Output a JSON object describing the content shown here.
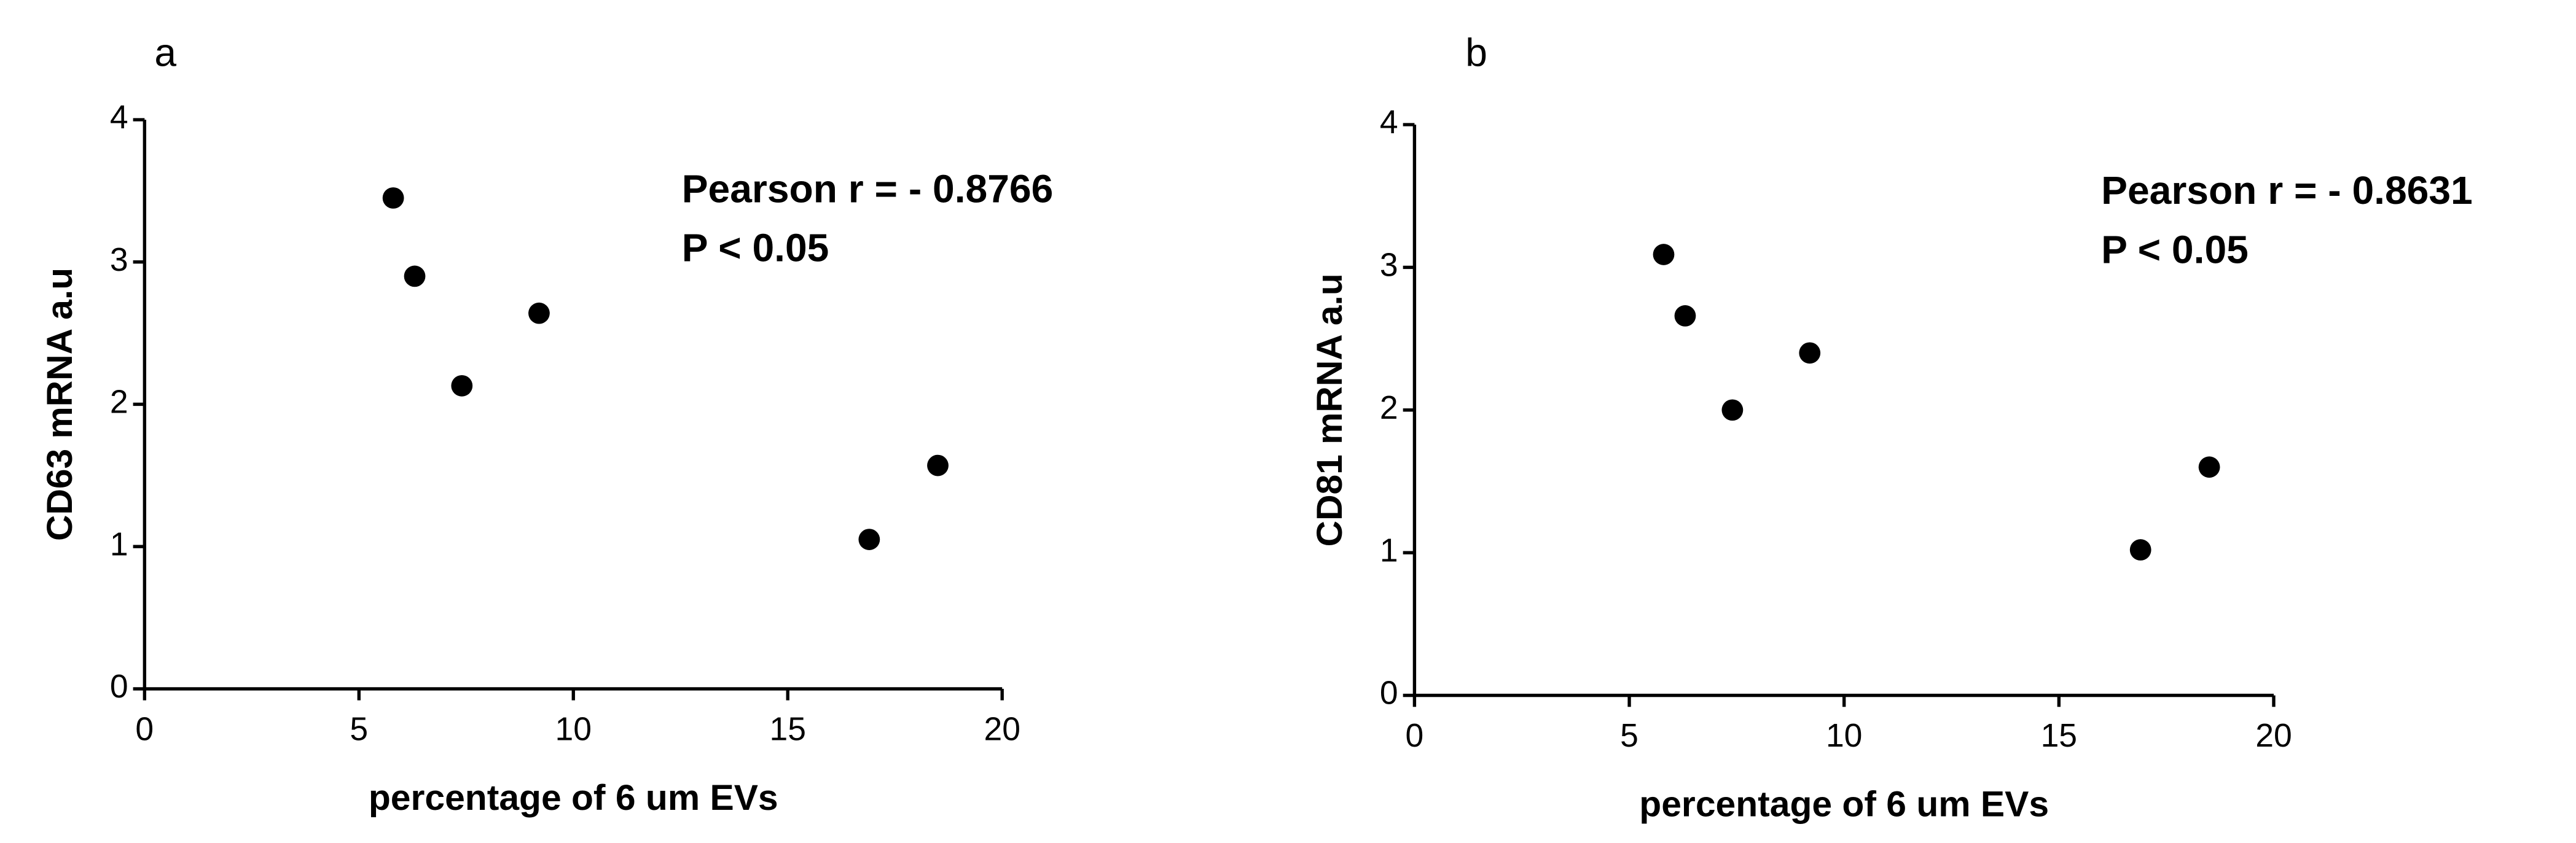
{
  "chart_data": [
    {
      "type": "scatter",
      "panel_label": "a",
      "x_label": "percentage of 6 um EVs",
      "y_label": "CD63 mRNA a.u",
      "annotations": [
        "Pearson r = - 0.8766",
        "P < 0.05"
      ],
      "x": [
        5.8,
        6.3,
        7.4,
        9.2,
        16.9,
        18.5
      ],
      "values": [
        3.45,
        2.9,
        2.13,
        2.64,
        1.05,
        1.57
      ],
      "color": "#000000",
      "xlim": [
        0,
        20
      ],
      "xticks": [
        0,
        5,
        10,
        15,
        20
      ],
      "ylim": [
        0,
        4
      ],
      "yticks": [
        0,
        1,
        2,
        3,
        4
      ]
    },
    {
      "type": "scatter",
      "panel_label": "b",
      "x_label": "percentage of 6 um EVs",
      "y_label": "CD81 mRNA a.u",
      "annotations": [
        "Pearson r = - 0.8631",
        "P < 0.05"
      ],
      "x": [
        5.8,
        6.3,
        7.4,
        9.2,
        16.9,
        18.5
      ],
      "values": [
        3.09,
        2.66,
        2.0,
        2.4,
        1.02,
        1.6
      ],
      "color": "#000000",
      "xlim": [
        0,
        20
      ],
      "xticks": [
        0,
        5,
        10,
        15,
        20
      ],
      "ylim": [
        0,
        4
      ],
      "yticks": [
        0,
        1,
        2,
        3,
        4
      ]
    }
  ]
}
